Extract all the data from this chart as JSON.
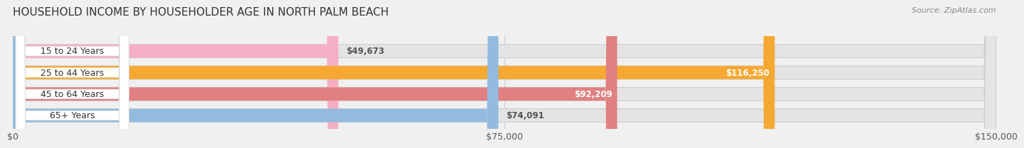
{
  "title": "HOUSEHOLD INCOME BY HOUSEHOLDER AGE IN NORTH PALM BEACH",
  "source": "Source: ZipAtlas.com",
  "categories": [
    "15 to 24 Years",
    "25 to 44 Years",
    "45 to 64 Years",
    "65+ Years"
  ],
  "values": [
    49673,
    116250,
    92209,
    74091
  ],
  "bar_colors": [
    "#f5afc4",
    "#f5a832",
    "#e08080",
    "#92bbdf"
  ],
  "xlim": [
    0,
    150000
  ],
  "xticks": [
    0,
    75000,
    150000
  ],
  "xtick_labels": [
    "$0",
    "$75,000",
    "$150,000"
  ],
  "background_color": "#f0f0f0",
  "track_color": "#e4e4e4",
  "track_edge_color": "#cccccc",
  "title_fontsize": 11,
  "source_fontsize": 8,
  "tick_fontsize": 9,
  "bar_label_fontsize": 8.5,
  "category_fontsize": 9,
  "bar_height": 0.62,
  "value_labels": [
    "$49,673",
    "$116,250",
    "$92,209",
    "$74,091"
  ],
  "label_pill_color": "#ffffff",
  "label_in_bar": [
    false,
    true,
    true,
    false
  ]
}
